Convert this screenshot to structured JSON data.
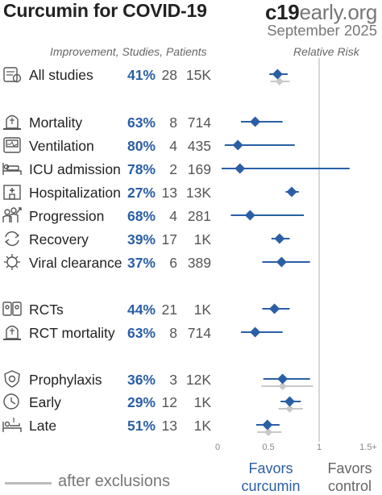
{
  "header": {
    "title": "Curcumin for COVID-19",
    "brand_bold": "c19",
    "brand_rest": "early.org",
    "date": "September 2025"
  },
  "columns": {
    "left": "Improvement, Studies, Patients",
    "right": "Relative Risk"
  },
  "footer": {
    "legend": "after exclusions",
    "favors_left_1": "Favors",
    "favors_left_2": "curcumin",
    "favors_right_1": "Favors",
    "favors_right_2": "control"
  },
  "colors": {
    "primary": "#2a5fa5",
    "exclusion": "#c8c8c8",
    "text": "#222222",
    "muted": "#777777",
    "reference_line": "#d8d8d8"
  },
  "chart_data": {
    "type": "forest",
    "x_axis": {
      "ticks": [
        "0",
        "0.5",
        "1",
        "1.5+"
      ],
      "tick_values": [
        0,
        0.5,
        1,
        1.5
      ],
      "range": [
        0,
        1.5
      ],
      "reference": 1
    },
    "rows": [
      {
        "icon": "all-studies-icon",
        "label": "All studies",
        "improvement": "41%",
        "studies": "28",
        "patients": "15K",
        "rr": 0.59,
        "lo": 0.51,
        "hi": 0.69,
        "excl": {
          "rr": 0.61,
          "lo": 0.52,
          "hi": 0.71
        }
      },
      {
        "icon": "tombstone-icon",
        "label": "Mortality",
        "improvement": "63%",
        "studies": "8",
        "patients": "714",
        "rr": 0.37,
        "lo": 0.23,
        "hi": 0.64
      },
      {
        "icon": "ventilator-icon",
        "label": "Ventilation",
        "improvement": "80%",
        "studies": "4",
        "patients": "435",
        "rr": 0.2,
        "lo": 0.07,
        "hi": 0.76
      },
      {
        "icon": "icu-bed-icon",
        "label": "ICU admission",
        "improvement": "78%",
        "studies": "2",
        "patients": "169",
        "rr": 0.22,
        "lo": 0.04,
        "hi": 1.3
      },
      {
        "icon": "hospital-icon",
        "label": "Hospitalization",
        "improvement": "27%",
        "studies": "13",
        "patients": "13K",
        "rr": 0.73,
        "lo": 0.67,
        "hi": 0.8
      },
      {
        "icon": "progression-icon",
        "label": "Progression",
        "improvement": "68%",
        "studies": "4",
        "patients": "281",
        "rr": 0.32,
        "lo": 0.13,
        "hi": 0.85
      },
      {
        "icon": "recovery-icon",
        "label": "Recovery",
        "improvement": "39%",
        "studies": "17",
        "patients": "1K",
        "rr": 0.61,
        "lo": 0.53,
        "hi": 0.71
      },
      {
        "icon": "virus-icon",
        "label": "Viral clearance",
        "improvement": "37%",
        "studies": "6",
        "patients": "389",
        "rr": 0.63,
        "lo": 0.44,
        "hi": 0.91
      },
      {
        "icon": "rct-icon",
        "label": "RCTs",
        "improvement": "44%",
        "studies": "21",
        "patients": "1K",
        "rr": 0.56,
        "lo": 0.44,
        "hi": 0.71
      },
      {
        "icon": "tombstone-icon",
        "label": "RCT mortality",
        "improvement": "63%",
        "studies": "8",
        "patients": "714",
        "rr": 0.37,
        "lo": 0.23,
        "hi": 0.64
      },
      {
        "icon": "shield-icon",
        "label": "Prophylaxis",
        "improvement": "36%",
        "studies": "3",
        "patients": "12K",
        "rr": 0.64,
        "lo": 0.45,
        "hi": 0.91,
        "excl": {
          "rr": 0.64,
          "lo": 0.43,
          "hi": 0.94
        }
      },
      {
        "icon": "clock-icon",
        "label": "Early",
        "improvement": "29%",
        "studies": "12",
        "patients": "1K",
        "rr": 0.71,
        "lo": 0.62,
        "hi": 0.82,
        "excl": {
          "rr": 0.71,
          "lo": 0.6,
          "hi": 0.84
        }
      },
      {
        "icon": "patient-bed-icon",
        "label": "Late",
        "improvement": "51%",
        "studies": "13",
        "patients": "1K",
        "rr": 0.49,
        "lo": 0.38,
        "hi": 0.61,
        "excl": {
          "rr": 0.5,
          "lo": 0.39,
          "hi": 0.63
        }
      }
    ]
  }
}
